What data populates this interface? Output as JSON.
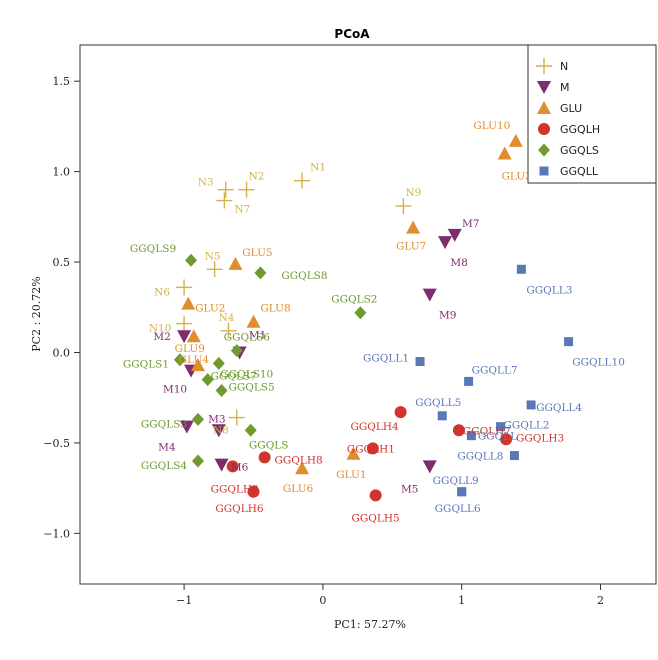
{
  "chart_data": {
    "type": "scatter",
    "title": "PCoA",
    "xlabel": "PC1: 57.27%",
    "ylabel": "PC2 : 20.72%",
    "xlim": [
      -1.75,
      2.4
    ],
    "ylim": [
      -1.28,
      1.7
    ],
    "xticks": [
      -1,
      0,
      1,
      2
    ],
    "xtick_labels": [
      "−1",
      "0",
      "1",
      "2"
    ],
    "yticks": [
      -1.0,
      -0.5,
      0.0,
      0.5,
      1.0,
      1.5
    ],
    "ytick_labels": [
      "−1.0",
      "−0.5",
      "0.0",
      "0.5",
      "1.0",
      "1.5"
    ],
    "grid": false,
    "legend_position": "top-right",
    "series": [
      {
        "name": "N",
        "marker": "plus",
        "color": "#D4B24A",
        "points": [
          {
            "label": "N1",
            "x": -0.15,
            "y": 0.95
          },
          {
            "label": "N2",
            "x": -0.55,
            "y": 0.9
          },
          {
            "label": "N3",
            "x": -0.7,
            "y": 0.9
          },
          {
            "label": "N7",
            "x": -0.71,
            "y": 0.84
          },
          {
            "label": "N9",
            "x": 0.58,
            "y": 0.81
          },
          {
            "label": "N5",
            "x": -0.78,
            "y": 0.46
          },
          {
            "label": "N6",
            "x": -1.0,
            "y": 0.36
          },
          {
            "label": "N10",
            "x": -1.0,
            "y": 0.16
          },
          {
            "label": "N4",
            "x": -0.68,
            "y": 0.12
          },
          {
            "label": "N8",
            "x": -0.62,
            "y": -0.36
          }
        ]
      },
      {
        "name": "M",
        "marker": "triangle-down",
        "color": "#7B2D6E",
        "points": [
          {
            "label": "M7",
            "x": 0.95,
            "y": 0.65
          },
          {
            "label": "M8",
            "x": 0.88,
            "y": 0.61
          },
          {
            "label": "M9",
            "x": 0.77,
            "y": 0.32
          },
          {
            "label": "M1",
            "x": -0.6,
            "y": 0.0
          },
          {
            "label": "M2",
            "x": -1.0,
            "y": 0.09
          },
          {
            "label": "M10",
            "x": -0.95,
            "y": -0.1
          },
          {
            "label": "M3",
            "x": -0.75,
            "y": -0.43
          },
          {
            "label": "M4",
            "x": -0.98,
            "y": -0.41
          },
          {
            "label": "M6",
            "x": -0.73,
            "y": -0.62
          },
          {
            "label": "M5",
            "x": 0.77,
            "y": -0.63
          }
        ]
      },
      {
        "name": "GLU",
        "marker": "triangle-up",
        "color": "#E08E2D",
        "points": [
          {
            "label": "GLU10",
            "x": 1.39,
            "y": 1.17
          },
          {
            "label": "GLU3",
            "x": 1.31,
            "y": 1.1
          },
          {
            "label": "GLU7",
            "x": 0.65,
            "y": 0.69
          },
          {
            "label": "GLU5",
            "x": -0.63,
            "y": 0.49
          },
          {
            "label": "GLU2",
            "x": -0.97,
            "y": 0.27
          },
          {
            "label": "GLU8",
            "x": -0.5,
            "y": 0.17
          },
          {
            "label": "GLU9",
            "x": -0.93,
            "y": 0.09
          },
          {
            "label": "GLU4",
            "x": -0.9,
            "y": -0.07
          },
          {
            "label": "GLU1",
            "x": 0.22,
            "y": -0.56
          },
          {
            "label": "GLU6",
            "x": -0.15,
            "y": -0.64
          }
        ]
      },
      {
        "name": "GGQLH",
        "marker": "circle",
        "color": "#D0342C",
        "points": [
          {
            "label": "GGQLH4",
            "x": 0.56,
            "y": -0.33
          },
          {
            "label": "GGQLH1",
            "x": 0.36,
            "y": -0.53
          },
          {
            "label": "GGQLH7",
            "x": 0.98,
            "y": -0.43
          },
          {
            "label": "GGQLH3",
            "x": 1.32,
            "y": -0.48
          },
          {
            "label": "GGQLH8",
            "x": -0.42,
            "y": -0.58
          },
          {
            "label": "GGQLH2",
            "x": -0.65,
            "y": -0.63
          },
          {
            "label": "GGQLH6",
            "x": -0.5,
            "y": -0.77
          },
          {
            "label": "GGQLH5",
            "x": 0.38,
            "y": -0.79
          }
        ]
      },
      {
        "name": "GGQLS",
        "marker": "diamond",
        "color": "#6E9A2E",
        "points": [
          {
            "label": "GGQLS9",
            "x": -0.95,
            "y": 0.51
          },
          {
            "label": "GGQLS8",
            "x": -0.45,
            "y": 0.44
          },
          {
            "label": "GGQLS2",
            "x": 0.27,
            "y": 0.22
          },
          {
            "label": "GGQLS6",
            "x": -0.62,
            "y": 0.01
          },
          {
            "label": "GGQLS1",
            "x": -1.03,
            "y": -0.04
          },
          {
            "label": "GGQLS10",
            "x": -0.75,
            "y": -0.06
          },
          {
            "label": "GGQLS7",
            "x": -0.83,
            "y": -0.15
          },
          {
            "label": "GGQLS5",
            "x": -0.73,
            "y": -0.21
          },
          {
            "label": "GGQLS3",
            "x": -0.9,
            "y": -0.37
          },
          {
            "label": "GGQLS4",
            "x": -0.9,
            "y": -0.6
          },
          {
            "label": "GGQLS",
            "x": -0.52,
            "y": -0.43
          }
        ]
      },
      {
        "name": "GGQLL",
        "marker": "square",
        "color": "#5A78B8",
        "points": [
          {
            "label": "GGQLL3",
            "x": 1.43,
            "y": 0.46
          },
          {
            "label": "GGQLL10",
            "x": 1.77,
            "y": 0.06
          },
          {
            "label": "GGQLL1",
            "x": 0.7,
            "y": -0.05
          },
          {
            "label": "GGQLL7",
            "x": 1.05,
            "y": -0.16
          },
          {
            "label": "GGQLL4",
            "x": 1.5,
            "y": -0.29
          },
          {
            "label": "GGQLL5",
            "x": 0.86,
            "y": -0.35
          },
          {
            "label": "GGQLL2",
            "x": 1.28,
            "y": -0.41
          },
          {
            "label": "GGQLL",
            "x": 1.07,
            "y": -0.46
          },
          {
            "label": "GGQLL8",
            "x": 1.38,
            "y": -0.57
          },
          {
            "label": "GGQLL9",
            "x": 1.0,
            "y": -0.77
          },
          {
            "label": "GGQLL6",
            "x": 1.0,
            "y": -0.77
          }
        ]
      }
    ]
  }
}
